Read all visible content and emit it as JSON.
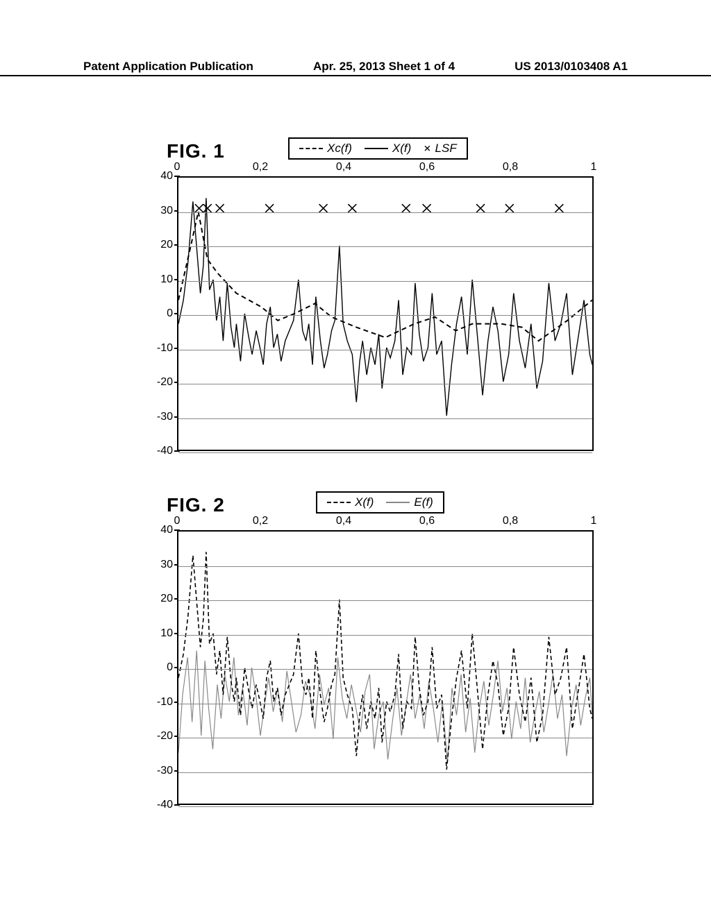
{
  "header": {
    "left": "Patent Application Publication",
    "center": "Apr. 25, 2013  Sheet 1 of 4",
    "right": "US 2013/0103408 A1"
  },
  "fig1": {
    "title": "FIG. 1",
    "type": "line+scatter",
    "xlim": [
      0,
      1
    ],
    "ylim": [
      -40,
      40
    ],
    "xticks": [
      0,
      0.2,
      0.4,
      0.6,
      0.8,
      1
    ],
    "xtick_labels": [
      "0",
      "0,2",
      "0,4",
      "0,6",
      "0,8",
      "1"
    ],
    "yticks": [
      -40,
      -30,
      -20,
      -10,
      0,
      10,
      20,
      30,
      40
    ],
    "ytick_labels": [
      "-40",
      "-30",
      "-20",
      "-10",
      "0",
      "10",
      "20",
      "30",
      "40"
    ],
    "grid_y": [
      -40,
      -30,
      -20,
      -10,
      0,
      10,
      20,
      30
    ],
    "grid_color": "#888888",
    "background_color": "#ffffff",
    "border_color": "#000000",
    "legend": [
      {
        "style": "dash",
        "label": "Xc(f)"
      },
      {
        "style": "solid",
        "label": "X(f)"
      },
      {
        "style": "x",
        "label": "LSF"
      }
    ],
    "series_Xc": {
      "color": "#000000",
      "dash": "7,5",
      "width": 2,
      "x": [
        0,
        0.03,
        0.048,
        0.07,
        0.094,
        0.14,
        0.2,
        0.24,
        0.28,
        0.33,
        0.37,
        0.43,
        0.5,
        0.57,
        0.62,
        0.67,
        0.71,
        0.78,
        0.83,
        0.87,
        0.94,
        1.0
      ],
      "y": [
        4,
        20,
        30,
        16,
        12,
        6,
        2,
        -2,
        0,
        3,
        -1,
        -4,
        -7,
        -3,
        -1,
        -5,
        -3,
        -3,
        -4,
        -8,
        -2,
        4
      ]
    },
    "series_X": {
      "color": "#000000",
      "width": 1.4,
      "x": [
        0,
        0.012,
        0.023,
        0.035,
        0.045,
        0.053,
        0.06,
        0.067,
        0.075,
        0.084,
        0.092,
        0.1,
        0.108,
        0.118,
        0.127,
        0.135,
        0.14,
        0.15,
        0.16,
        0.17,
        0.178,
        0.188,
        0.197,
        0.205,
        0.213,
        0.222,
        0.23,
        0.239,
        0.248,
        0.258,
        0.268,
        0.278,
        0.29,
        0.3,
        0.308,
        0.315,
        0.324,
        0.332,
        0.343,
        0.352,
        0.36,
        0.37,
        0.378,
        0.389,
        0.398,
        0.408,
        0.42,
        0.43,
        0.438,
        0.445,
        0.455,
        0.465,
        0.475,
        0.484,
        0.492,
        0.503,
        0.512,
        0.523,
        0.532,
        0.542,
        0.552,
        0.563,
        0.572,
        0.582,
        0.592,
        0.603,
        0.613,
        0.624,
        0.636,
        0.648,
        0.66,
        0.672,
        0.684,
        0.698,
        0.71,
        0.722,
        0.735,
        0.748,
        0.76,
        0.772,
        0.785,
        0.798,
        0.81,
        0.824,
        0.838,
        0.852,
        0.866,
        0.88,
        0.895,
        0.91,
        0.924,
        0.938,
        0.952,
        0.966,
        0.98,
        0.994,
        1.0
      ],
      "y": [
        -3,
        4,
        15,
        33,
        18,
        6,
        14,
        34,
        7,
        10,
        -2,
        5,
        -8,
        9,
        -4,
        -10,
        -3,
        -14,
        0,
        -7,
        -12,
        -5,
        -10,
        -15,
        -3,
        2,
        -10,
        -6,
        -14,
        -8,
        -5,
        -2,
        10,
        -5,
        -8,
        -3,
        -15,
        5,
        -8,
        -16,
        -12,
        -5,
        -2,
        20,
        -3,
        -8,
        -12,
        -26,
        -14,
        -8,
        -18,
        -10,
        -15,
        -6,
        -22,
        -10,
        -13,
        -8,
        4,
        -18,
        -10,
        -12,
        9,
        -6,
        -14,
        -10,
        6,
        -12,
        -8,
        -30,
        -15,
        -3,
        5,
        -12,
        10,
        -6,
        -24,
        -8,
        2,
        -5,
        -20,
        -12,
        6,
        -8,
        -16,
        -3,
        -22,
        -14,
        9,
        -8,
        -3,
        6,
        -18,
        -7,
        4,
        -12,
        -15
      ]
    },
    "series_LSF": {
      "color": "#000000",
      "marker": "x",
      "size": 6,
      "x": [
        0.05,
        0.07,
        0.1,
        0.22,
        0.35,
        0.42,
        0.55,
        0.6,
        0.73,
        0.8,
        0.92
      ],
      "y": [
        31,
        31,
        31,
        31,
        31,
        31,
        31,
        31,
        31,
        31,
        31
      ]
    }
  },
  "fig2": {
    "title": "FIG. 2",
    "type": "line",
    "xlim": [
      0,
      1
    ],
    "ylim": [
      -40,
      40
    ],
    "xticks": [
      0,
      0.2,
      0.4,
      0.6,
      0.8,
      1
    ],
    "xtick_labels": [
      "0",
      "0,2",
      "0,4",
      "0,6",
      "0,8",
      "1"
    ],
    "yticks": [
      -40,
      -30,
      -20,
      -10,
      0,
      10,
      20,
      30,
      40
    ],
    "ytick_labels": [
      "-40",
      "-30",
      "-20",
      "-10",
      "0",
      "10",
      "20",
      "30",
      "40"
    ],
    "grid_y": [
      -40,
      -30,
      -20,
      -10,
      0,
      10,
      20,
      30
    ],
    "grid_color": "#888888",
    "background_color": "#ffffff",
    "border_color": "#000000",
    "legend": [
      {
        "style": "dash",
        "label": "X(f)"
      },
      {
        "style": "gray",
        "label": "E(f)"
      }
    ],
    "series_X": {
      "color": "#000000",
      "dash": "6,4",
      "width": 1.6,
      "x": [
        0,
        0.012,
        0.023,
        0.035,
        0.045,
        0.053,
        0.06,
        0.067,
        0.075,
        0.084,
        0.092,
        0.1,
        0.108,
        0.118,
        0.127,
        0.135,
        0.14,
        0.15,
        0.16,
        0.17,
        0.178,
        0.188,
        0.197,
        0.205,
        0.213,
        0.222,
        0.23,
        0.239,
        0.248,
        0.258,
        0.268,
        0.278,
        0.29,
        0.3,
        0.308,
        0.315,
        0.324,
        0.332,
        0.343,
        0.352,
        0.36,
        0.37,
        0.378,
        0.389,
        0.398,
        0.408,
        0.42,
        0.43,
        0.438,
        0.445,
        0.455,
        0.465,
        0.475,
        0.484,
        0.492,
        0.503,
        0.512,
        0.523,
        0.532,
        0.542,
        0.552,
        0.563,
        0.572,
        0.582,
        0.592,
        0.603,
        0.613,
        0.624,
        0.636,
        0.648,
        0.66,
        0.672,
        0.684,
        0.698,
        0.71,
        0.722,
        0.735,
        0.748,
        0.76,
        0.772,
        0.785,
        0.798,
        0.81,
        0.824,
        0.838,
        0.852,
        0.866,
        0.88,
        0.895,
        0.91,
        0.924,
        0.938,
        0.952,
        0.966,
        0.98,
        0.994,
        1.0
      ],
      "y": [
        -3,
        4,
        15,
        33,
        18,
        6,
        14,
        34,
        7,
        10,
        -2,
        5,
        -8,
        9,
        -4,
        -10,
        -3,
        -14,
        0,
        -7,
        -12,
        -5,
        -10,
        -15,
        -3,
        2,
        -10,
        -6,
        -14,
        -8,
        -5,
        -2,
        10,
        -5,
        -8,
        -3,
        -15,
        5,
        -8,
        -16,
        -12,
        -5,
        -2,
        20,
        -3,
        -8,
        -12,
        -26,
        -14,
        -8,
        -18,
        -10,
        -15,
        -6,
        -22,
        -10,
        -13,
        -8,
        4,
        -18,
        -10,
        -12,
        9,
        -6,
        -14,
        -10,
        6,
        -12,
        -8,
        -30,
        -15,
        -3,
        5,
        -12,
        10,
        -6,
        -24,
        -8,
        2,
        -5,
        -20,
        -12,
        6,
        -8,
        -16,
        -3,
        -22,
        -14,
        9,
        -8,
        -3,
        6,
        -18,
        -7,
        4,
        -12,
        -15
      ]
    },
    "series_E": {
      "color": "#888888",
      "width": 1.2,
      "x": [
        0,
        0.01,
        0.022,
        0.033,
        0.044,
        0.055,
        0.064,
        0.073,
        0.083,
        0.094,
        0.103,
        0.112,
        0.123,
        0.134,
        0.145,
        0.155,
        0.166,
        0.177,
        0.188,
        0.198,
        0.208,
        0.218,
        0.229,
        0.24,
        0.251,
        0.262,
        0.273,
        0.284,
        0.296,
        0.307,
        0.318,
        0.33,
        0.341,
        0.352,
        0.363,
        0.374,
        0.385,
        0.396,
        0.407,
        0.418,
        0.429,
        0.44,
        0.451,
        0.462,
        0.473,
        0.484,
        0.495,
        0.506,
        0.517,
        0.528,
        0.539,
        0.55,
        0.561,
        0.572,
        0.583,
        0.594,
        0.605,
        0.616,
        0.627,
        0.638,
        0.65,
        0.661,
        0.672,
        0.683,
        0.694,
        0.705,
        0.716,
        0.727,
        0.738,
        0.75,
        0.761,
        0.772,
        0.783,
        0.794,
        0.805,
        0.816,
        0.827,
        0.838,
        0.85,
        0.861,
        0.872,
        0.883,
        0.894,
        0.905,
        0.916,
        0.927,
        0.938,
        0.95,
        0.961,
        0.972,
        0.983,
        0.994,
        1.0
      ],
      "y": [
        -25,
        -8,
        3,
        -16,
        5,
        -20,
        2,
        -12,
        -24,
        -5,
        -15,
        -2,
        -10,
        3,
        -14,
        -6,
        -17,
        0,
        -9,
        -20,
        -11,
        -3,
        -13,
        -6,
        -16,
        -1,
        -10,
        -19,
        -14,
        -4,
        -8,
        -18,
        -2,
        -11,
        -6,
        -21,
        3,
        -9,
        -15,
        -5,
        -12,
        -19,
        -7,
        -2,
        -24,
        -14,
        -10,
        -27,
        -16,
        -6,
        -20,
        -11,
        -2,
        -15,
        -8,
        -18,
        -4,
        -12,
        -22,
        -10,
        -28,
        -6,
        -14,
        -2,
        -19,
        -9,
        -25,
        -12,
        -4,
        -17,
        -8,
        2,
        -13,
        -6,
        -21,
        -10,
        -18,
        -3,
        -22,
        -14,
        -7,
        -19,
        -11,
        -2,
        -15,
        -8,
        -26,
        -12,
        -5,
        -17,
        -9,
        -3,
        -14
      ]
    }
  }
}
